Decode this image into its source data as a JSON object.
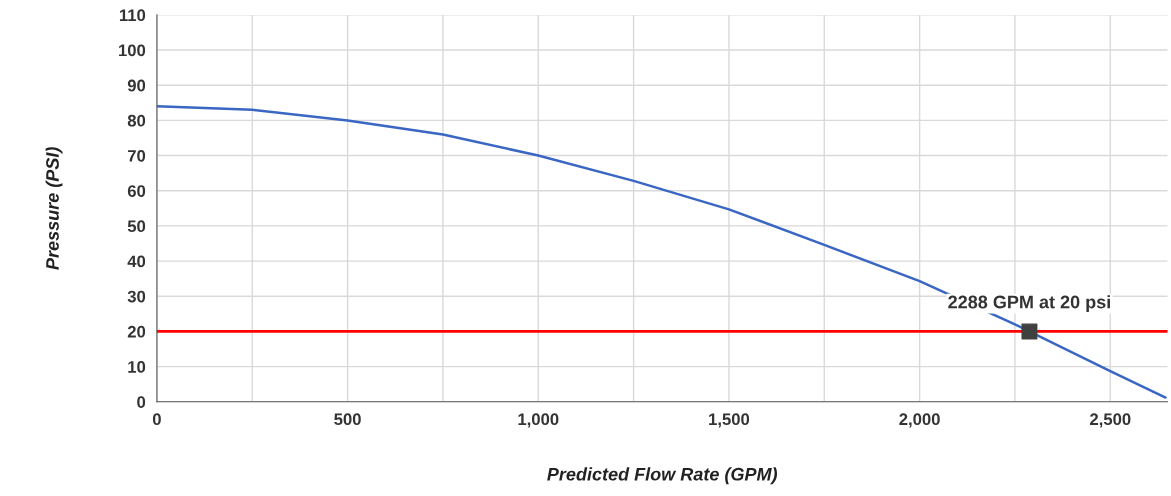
{
  "chart_data": {
    "type": "line",
    "xlabel": "Predicted Flow Rate (GPM)",
    "ylabel": "Pressure (PSI)",
    "series": [
      {
        "color": "#3a66c4",
        "marker": "none",
        "x": [
          0,
          250,
          500,
          750,
          1000,
          1250,
          1500,
          1750,
          2000,
          2250,
          2500,
          2645
        ],
        "values": [
          84,
          83,
          80,
          76,
          70,
          62.8,
          54.7,
          44.6,
          34.3,
          22,
          8.7,
          1.2
        ]
      },
      {
        "type": "scatter",
        "color": "#404040",
        "marker": "square",
        "x": [
          2288
        ],
        "values": [
          20
        ]
      }
    ],
    "ref_lines": [
      {
        "axis": "y",
        "value": 20,
        "color": "#ff0000",
        "line_style": "solid"
      }
    ],
    "annotations": [
      {
        "text": "2288 GPM at 20 psi",
        "x": 2288,
        "y": 20
      }
    ],
    "xlim": [
      0,
      2650
    ],
    "ylim": [
      0,
      110
    ],
    "xticks": [
      0,
      {
        "value": 250,
        "label": null
      },
      {
        "value": 500,
        "label": "500"
      },
      {
        "value": 750,
        "label": null
      },
      {
        "value": 1000,
        "label": "1,000"
      },
      {
        "value": 1250,
        "label": null
      },
      {
        "value": 1500,
        "label": "1,500"
      },
      {
        "value": 1750,
        "label": null
      },
      {
        "value": 2000,
        "label": "2,000"
      },
      {
        "value": 2250,
        "label": null
      },
      {
        "value": 2500,
        "label": "2,500"
      }
    ],
    "yticks": [
      0,
      10,
      20,
      30,
      40,
      50,
      60,
      70,
      80,
      90,
      100,
      110
    ],
    "grid": true
  }
}
